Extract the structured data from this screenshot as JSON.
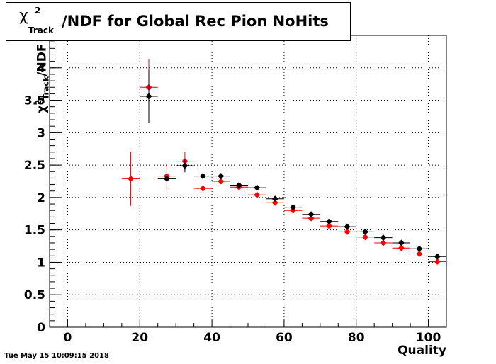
{
  "title": {
    "symbol": "χ",
    "superscript": "2",
    "subscript": "Track",
    "text": "/NDF for Global Rec Pion NoHits"
  },
  "timestamp": "Tue May 15 10:09:15 2018",
  "chart_data": {
    "type": "scatter",
    "title": "χ²_Track/NDF for Global Rec Pion NoHits",
    "xlabel": "Quality",
    "ylabel": "χ²_Track/NDF",
    "ylabel_parts": {
      "symbol": "χ",
      "superscript": "2",
      "subscript": "Track",
      "text": "/NDF"
    },
    "xlim": [
      -5,
      105
    ],
    "ylim": [
      0,
      4.5
    ],
    "x_ticks": [
      "0",
      "20",
      "40",
      "60",
      "80",
      "100"
    ],
    "y_ticks": [
      "0",
      "0.5",
      "1",
      "1.5",
      "2",
      "2.5",
      "3",
      "3.5",
      "4"
    ],
    "grid": true,
    "x_half_width": 2.5,
    "series": [
      {
        "color": "#ff0000",
        "x": [
          17.5,
          22.5,
          27.5,
          32.5,
          37.5,
          42.5,
          47.5,
          52.5,
          57.5,
          62.5,
          67.5,
          72.5,
          77.5,
          82.5,
          87.5,
          92.5,
          97.5,
          102.5
        ],
        "y": [
          2.29,
          3.7,
          2.33,
          2.56,
          2.14,
          2.25,
          2.16,
          2.04,
          1.92,
          1.8,
          1.68,
          1.56,
          1.47,
          1.39,
          1.3,
          1.22,
          1.13,
          1.01
        ],
        "yerr": [
          0.42,
          0.44,
          0.2,
          0.14,
          0.06,
          0.04,
          0.03,
          0.02,
          0.02,
          0.015,
          0.012,
          0.01,
          0.01,
          0.01,
          0.01,
          0.01,
          0.01,
          0.01
        ]
      },
      {
        "color": "#000000",
        "x": [
          22.5,
          27.5,
          32.5,
          37.5,
          42.5,
          47.5,
          52.5,
          57.5,
          62.5,
          67.5,
          72.5,
          77.5,
          82.5,
          87.5,
          92.5,
          97.5,
          102.5
        ],
        "y": [
          3.56,
          2.29,
          2.49,
          2.33,
          2.33,
          2.19,
          2.15,
          1.98,
          1.85,
          1.74,
          1.63,
          1.55,
          1.47,
          1.38,
          1.3,
          1.21,
          1.09
        ],
        "yerr": [
          0.41,
          0.12,
          0.1,
          0.05,
          0.03,
          0.02,
          0.02,
          0.02,
          0.015,
          0.012,
          0.01,
          0.01,
          0.01,
          0.01,
          0.01,
          0.01,
          0.01
        ]
      }
    ]
  }
}
